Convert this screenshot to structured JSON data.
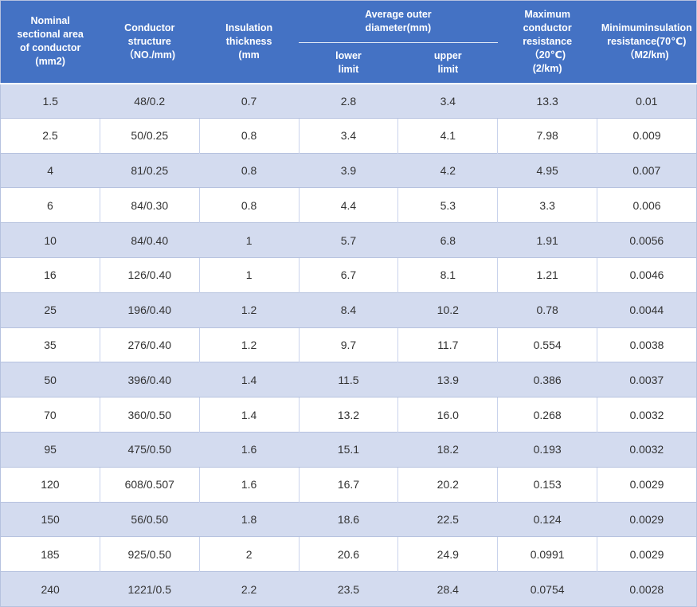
{
  "table": {
    "headers": {
      "nominal_area": "Nominal\nsectional area\nof conductor\n(mm2)",
      "conductor_structure": "Conductor\nstructure\n（NO./mm)",
      "insulation_thickness": "Insulation\nthickness\n(mm",
      "avg_outer_diameter": "Average outer\ndiameter(mm)",
      "lower_limit": "lower\nlimit",
      "upper_limit": "upper\nlimit",
      "max_conductor_resistance": "Maximum\nconductor\nresistance\n（20℃)\n(2/km)",
      "min_insulation_resistance": "Minimuminsulation resistance(70℃)\n（M2/km)"
    },
    "rows": [
      [
        "1.5",
        "48/0.2",
        "0.7",
        "2.8",
        "3.4",
        "13.3",
        "0.01"
      ],
      [
        "2.5",
        "50/0.25",
        "0.8",
        "3.4",
        "4.1",
        "7.98",
        "0.009"
      ],
      [
        "4",
        "81/0.25",
        "0.8",
        "3.9",
        "4.2",
        "4.95",
        "0.007"
      ],
      [
        "6",
        "84/0.30",
        "0.8",
        "4.4",
        "5.3",
        "3.3",
        "0.006"
      ],
      [
        "10",
        "84/0.40",
        "1",
        "5.7",
        "6.8",
        "1.91",
        "0.0056"
      ],
      [
        "16",
        "126/0.40",
        "1",
        "6.7",
        "8.1",
        "1.21",
        "0.0046"
      ],
      [
        "25",
        "196/0.40",
        "1.2",
        "8.4",
        "10.2",
        "0.78",
        "0.0044"
      ],
      [
        "35",
        "276/0.40",
        "1.2",
        "9.7",
        "11.7",
        "0.554",
        "0.0038"
      ],
      [
        "50",
        "396/0.40",
        "1.4",
        "11.5",
        "13.9",
        "0.386",
        "0.0037"
      ],
      [
        "70",
        "360/0.50",
        "1.4",
        "13.2",
        "16.0",
        "0.268",
        "0.0032"
      ],
      [
        "95",
        "475/0.50",
        "1.6",
        "15.1",
        "18.2",
        "0.193",
        "0.0032"
      ],
      [
        "120",
        "608/0.507",
        "1.6",
        "16.7",
        "20.2",
        "0.153",
        "0.0029"
      ],
      [
        "150",
        "56/0.50",
        "1.8",
        "18.6",
        "22.5",
        "0.124",
        "0.0029"
      ],
      [
        "185",
        "925/0.50",
        "2",
        "20.6",
        "24.9",
        "0.0991",
        "0.0029"
      ],
      [
        "240",
        "1221/0.5",
        "2.2",
        "23.5",
        "28.4",
        "0.0754",
        "0.0028"
      ]
    ],
    "colors": {
      "header_bg": "#4472C4",
      "stripe_bg": "#D3DBEF",
      "row_border": "#B6C2DF",
      "cell_border": "#C9D3EC",
      "header_text": "#FFFFFF",
      "body_text": "#333333"
    }
  }
}
